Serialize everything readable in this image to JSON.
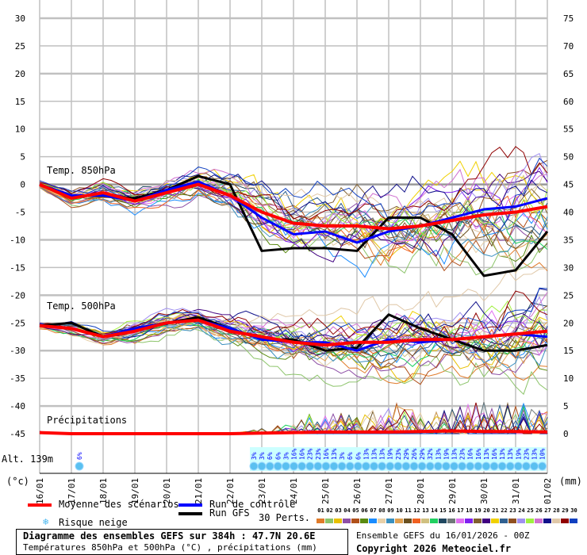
{
  "chart_data": {
    "type": "line",
    "title": "Diagramme des ensembles GEFS sur 384h : 47.7N 20.6E",
    "subtitle": "Températures 850hPa et 500hPa (°C) , précipitations (mm)",
    "run_info": "Ensemble GEFS du 16/01/2026 - 00Z",
    "copyright": "Copyright 2026 Meteociel.fr",
    "altitude": "Alt. 139m",
    "ylabel_left": "(°c)",
    "ylabel_right": "(mm)",
    "ylim_left": [
      -45,
      30
    ],
    "ylim_right": [
      0,
      75
    ],
    "yticks_left": [
      30,
      25,
      20,
      15,
      10,
      5,
      0,
      -5,
      -10,
      -15,
      -20,
      -25,
      -30,
      -35,
      -40,
      -45
    ],
    "yticks_right": [
      75,
      70,
      65,
      60,
      55,
      50,
      45,
      40,
      35,
      30,
      25,
      20,
      15,
      10,
      5,
      0
    ],
    "x_dates": [
      "16/01",
      "17/01",
      "18/01",
      "19/01",
      "20/01",
      "21/01",
      "22/01",
      "23/01",
      "24/01",
      "25/01",
      "26/01",
      "27/01",
      "28/01",
      "29/01",
      "30/01",
      "31/01",
      "01/02"
    ],
    "panel_labels": {
      "t850": "Temp. 850hPa",
      "t500": "Temp. 500hPa",
      "precip": "Précipitations"
    },
    "series": {
      "t850_mean": [
        0,
        -2.5,
        -1.5,
        -3,
        -1.5,
        0,
        -2,
        -5,
        -7,
        -7.5,
        -7.5,
        -8,
        -7.5,
        -6.5,
        -5.5,
        -5,
        -4
      ],
      "t850_control": [
        0,
        -2,
        -2,
        -3,
        -1,
        0.5,
        -2,
        -6,
        -9,
        -8.5,
        -10.5,
        -8.5,
        -7.5,
        -6,
        -4.5,
        -4,
        -2.5
      ],
      "t850_gfs": [
        0,
        -2,
        -2,
        -2.5,
        -1,
        1.5,
        0,
        -12,
        -11.5,
        -11.5,
        -12,
        -6,
        -6,
        -9,
        -16.5,
        -15.5,
        -8.5
      ],
      "t500_mean": [
        -25.5,
        -26,
        -27.5,
        -26.5,
        -25,
        -24.5,
        -26.5,
        -27.5,
        -28.5,
        -29,
        -28.5,
        -28.5,
        -28,
        -28,
        -27.5,
        -27,
        -26.5
      ],
      "t500_control": [
        -25.5,
        -26,
        -27.5,
        -26,
        -25,
        -24.5,
        -26,
        -28,
        -28.5,
        -28.5,
        -30,
        -28,
        -28.5,
        -28,
        -27.5,
        -27,
        -27.5
      ],
      "t500_gfs": [
        -25.5,
        -25,
        -27.5,
        -26,
        -25,
        -24,
        -26,
        -28,
        -28,
        -30,
        -29.5,
        -23.5,
        -26,
        -28,
        -30,
        -30,
        -29
      ],
      "precip_mean": [
        0.2,
        0,
        0,
        0,
        0,
        0,
        0,
        0.1,
        0.2,
        0.3,
        0.3,
        0.3,
        0.4,
        0.5,
        0.4,
        0.4,
        0.3
      ],
      "t850_spread": [
        0.5,
        1,
        1.5,
        1.5,
        2,
        2,
        3,
        4,
        4,
        4.5,
        5,
        5,
        5.5,
        6,
        6.5,
        7,
        7
      ],
      "t500_spread": [
        0.5,
        1,
        1,
        1.5,
        1.5,
        1.5,
        2,
        3,
        3.5,
        4,
        4,
        4.5,
        5,
        5,
        5.5,
        6,
        6
      ],
      "precip_max": [
        0.5,
        0,
        0,
        0,
        0,
        0,
        0,
        1,
        2,
        5,
        3,
        6,
        4,
        5,
        6,
        6,
        4
      ]
    },
    "snow_risk": {
      "first": {
        "time": "17/01",
        "pct": "6%"
      },
      "start_offset_days": 6.75,
      "pcts": [
        "3%",
        "3%",
        "6%",
        "6%",
        "3%",
        "16%",
        "16%",
        "23%",
        "23%",
        "16%",
        "13%",
        "3%",
        "6%",
        "6%",
        "13%",
        "13%",
        "13%",
        "19%",
        "23%",
        "29%",
        "26%",
        "29%",
        "32%",
        "13%",
        "19%",
        "13%",
        "23%",
        "16%",
        "16%",
        "13%",
        "16%",
        "13%",
        "13%",
        "19%",
        "23%",
        "13%",
        "10%"
      ]
    },
    "legend": {
      "mean": "Moyenne des scénarios",
      "control": "Run de contrôle",
      "gfs": "Run GFS",
      "snow": "Risque neige",
      "perts": "30 Perts.",
      "mean_color": "#ff0000",
      "control_color": "#0000ff",
      "gfs_color": "#000000",
      "pert_colors": [
        "#e07b2a",
        "#8cc46a",
        "#e8c000",
        "#8e4fa6",
        "#b0501a",
        "#5a8a10",
        "#1a8cff",
        "#e8d0a8",
        "#3a90c0",
        "#e0a050",
        "#6a5020",
        "#f06020",
        "#d0c080",
        "#20d060",
        "#204860",
        "#707878",
        "#e070f0",
        "#8020f0",
        "#806030",
        "#400080",
        "#f0d000",
        "#306090",
        "#905020",
        "#a090f0",
        "#a0f040",
        "#d070d0",
        "#10108a",
        "#e0c8a8",
        "#900000",
        "#1040c0"
      ],
      "pert_numbers": [
        "01",
        "02",
        "03",
        "04",
        "05",
        "06",
        "07",
        "08",
        "09",
        "10",
        "11",
        "12",
        "13",
        "14",
        "15",
        "16",
        "17",
        "18",
        "19",
        "20",
        "21",
        "22",
        "23",
        "24",
        "25",
        "26",
        "27",
        "28",
        "29",
        "30"
      ]
    }
  }
}
